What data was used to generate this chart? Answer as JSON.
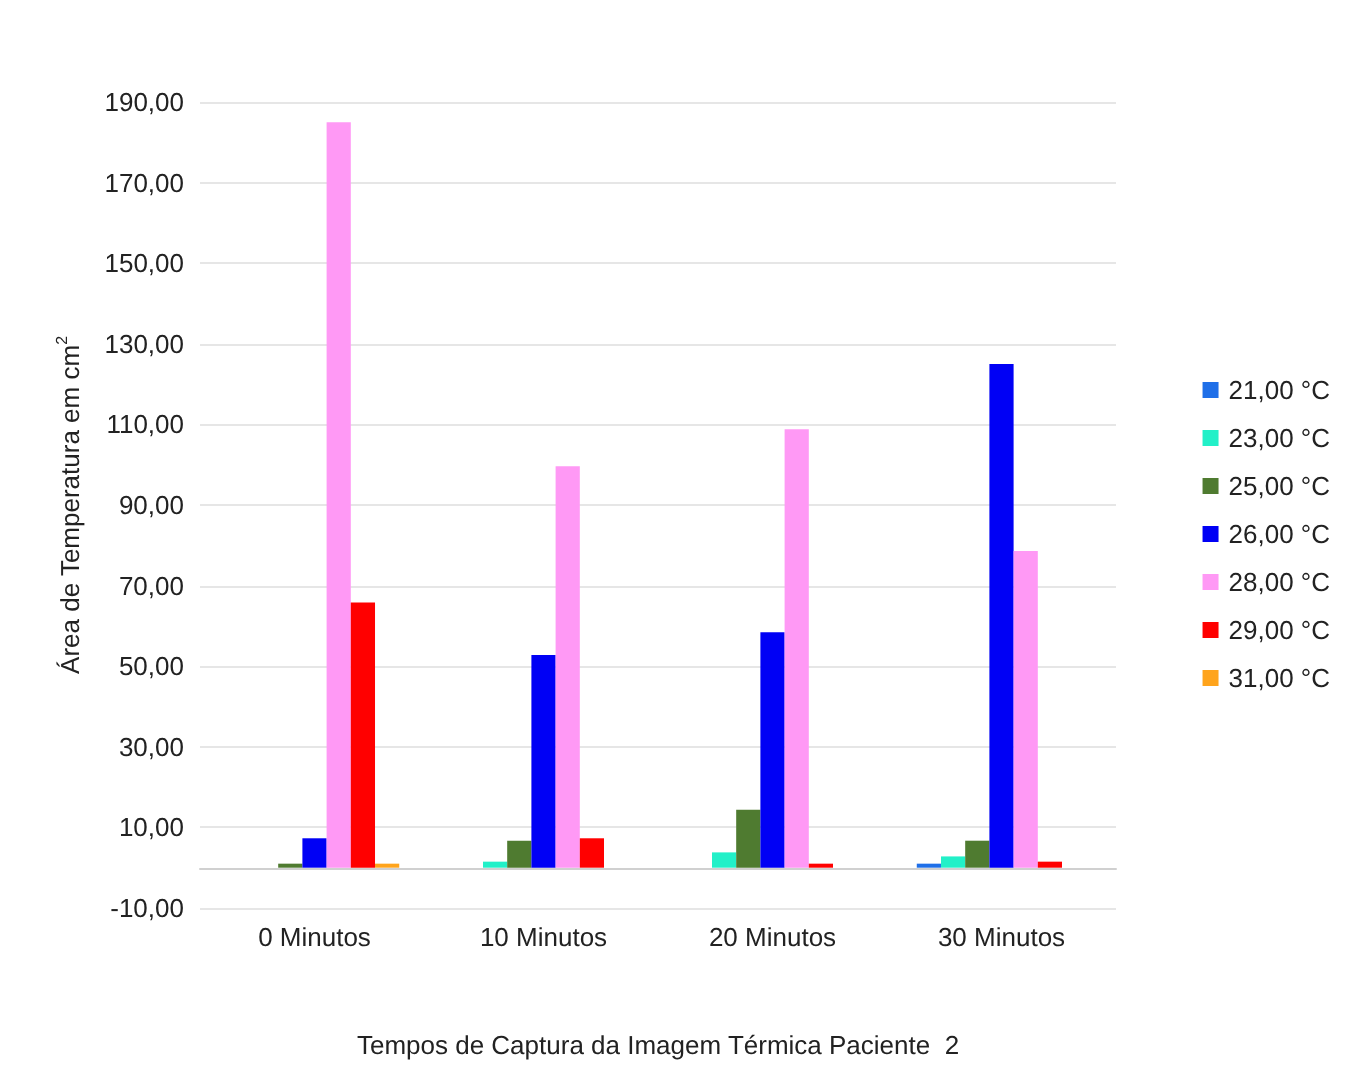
{
  "chart_data": {
    "type": "bar",
    "xlabel": "Tempos de Captura da Imagem Térmica Paciente  2",
    "ylabel": "Área de Temperatura em cm$^{2}$",
    "categories": [
      "0 Minutos",
      "10 Minutos",
      "20 Minutos",
      "30 Minutos"
    ],
    "series": [
      {
        "name": "21,00 °C",
        "color": "#1f6fe8",
        "values": [
          0,
          0,
          0,
          1
        ]
      },
      {
        "name": "23,00 °C",
        "color": "#22f0c8",
        "values": [
          0,
          1.5,
          3.8,
          2.8
        ]
      },
      {
        "name": "25,00 °C",
        "color": "#4f7b30",
        "values": [
          1,
          6.7,
          14.4,
          6.7
        ]
      },
      {
        "name": "26,00 °C",
        "color": "#0000f5",
        "values": [
          7.3,
          52.8,
          58.4,
          125
        ]
      },
      {
        "name": "28,00 °C",
        "color": "#ff99f5",
        "values": [
          185,
          99.6,
          108.8,
          78.6
        ]
      },
      {
        "name": "29,00 °C",
        "color": "#ff0000",
        "values": [
          65.8,
          7.3,
          1,
          1.5
        ]
      },
      {
        "name": "31,00 °C",
        "color": "#ffa41c",
        "values": [
          1,
          0,
          0,
          0
        ]
      }
    ],
    "ylim": [
      -10,
      190
    ],
    "yticks": [
      {
        "value": -10,
        "label": "-10,00"
      },
      {
        "value": 10,
        "label": "10,00"
      },
      {
        "value": 30,
        "label": "30,00"
      },
      {
        "value": 50,
        "label": "50,00"
      },
      {
        "value": 70,
        "label": "70,00"
      },
      {
        "value": 90,
        "label": "90,00"
      },
      {
        "value": 110,
        "label": "110,00"
      },
      {
        "value": 130,
        "label": "130,00"
      },
      {
        "value": 150,
        "label": "150,00"
      },
      {
        "value": 170,
        "label": "170,00"
      },
      {
        "value": 190,
        "label": "190,00"
      }
    ],
    "grid": true,
    "legend": "right"
  }
}
